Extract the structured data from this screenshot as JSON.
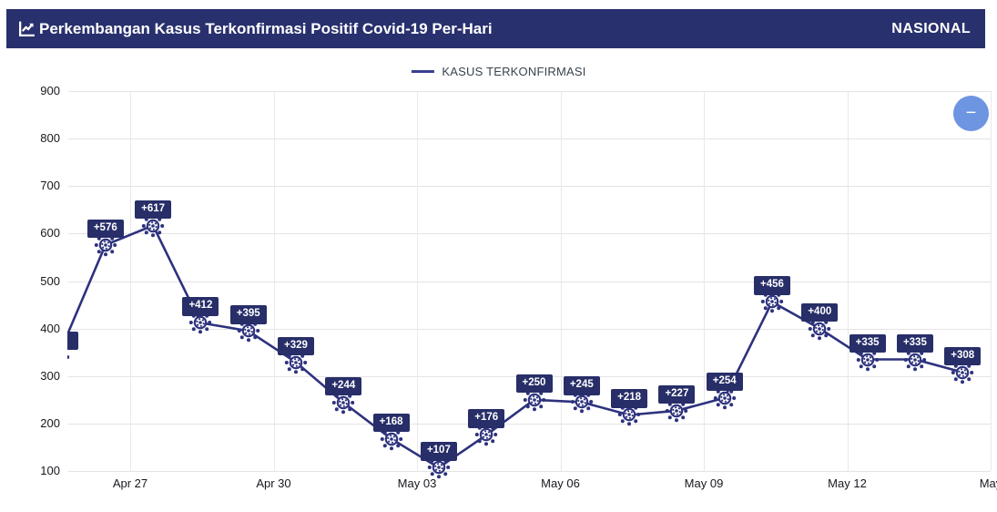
{
  "header": {
    "title": "Perkembangan Kasus Terkonfirmasi Positif Covid-19 Per-Hari",
    "region_label": "NASIONAL",
    "icon": "line-chart-icon"
  },
  "legend": {
    "label": "KASUS TERKONFIRMASI"
  },
  "controls": {
    "collapse_minus": "−"
  },
  "colors": {
    "header_bg": "#28306d",
    "series": "#2d327d",
    "badge_bg": "#272e68",
    "badge_text": "#ffffff",
    "grid": "#e5e5e5",
    "axis_text": "#16181d",
    "collapse_button": "#6d95e1"
  },
  "chart_data": {
    "type": "line",
    "title": "Perkembangan Kasus Terkonfirmasi Positif Covid-19 Per-Hari",
    "series": [
      {
        "name": "KASUS TERKONFIRMASI",
        "color": "#2d327d",
        "marker": "virus-icon",
        "points": [
          {
            "label": "",
            "value": 340,
            "clipped": true
          },
          {
            "label": "+576",
            "value": 576
          },
          {
            "label": "+617",
            "value": 617
          },
          {
            "label": "+412",
            "value": 412
          },
          {
            "label": "+395",
            "value": 395
          },
          {
            "label": "+329",
            "value": 329
          },
          {
            "label": "+244",
            "value": 244
          },
          {
            "label": "+168",
            "value": 168
          },
          {
            "label": "+107",
            "value": 107
          },
          {
            "label": "+176",
            "value": 176
          },
          {
            "label": "+250",
            "value": 250
          },
          {
            "label": "+245",
            "value": 245
          },
          {
            "label": "+218",
            "value": 218
          },
          {
            "label": "+227",
            "value": 227
          },
          {
            "label": "+254",
            "value": 254
          },
          {
            "label": "+456",
            "value": 456
          },
          {
            "label": "+400",
            "value": 400
          },
          {
            "label": "+335",
            "value": 335
          },
          {
            "label": "+335",
            "value": 335
          },
          {
            "label": "+308",
            "value": 308
          }
        ]
      }
    ],
    "x_tick_labels": [
      "Apr 27",
      "Apr 30",
      "May 03",
      "May 06",
      "May 09",
      "May 12",
      "May"
    ],
    "y_ticks": [
      100,
      200,
      300,
      400,
      500,
      600,
      700,
      800,
      900
    ],
    "ylim": [
      100,
      900
    ],
    "grid": true,
    "legend_position": "top-center",
    "point_labels": "navy badge above each virus marker"
  }
}
